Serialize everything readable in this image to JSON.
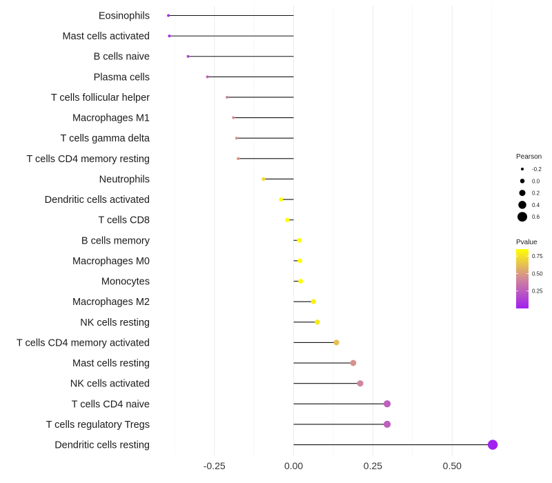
{
  "chart_data": {
    "type": "scatter",
    "subtype": "lollipop",
    "title": "",
    "xlabel": "",
    "ylabel": "",
    "xlim": [
      -0.43,
      0.68
    ],
    "x_ticks": [
      -0.25,
      0.0,
      0.25,
      0.5
    ],
    "x_tick_labels": [
      "-0.25",
      "0.00",
      "0.25",
      "0.50"
    ],
    "grid": true,
    "legend_position": "right",
    "points": [
      {
        "category": "Eosinophils",
        "value": -0.395,
        "pvalue": 0.05
      },
      {
        "category": "Mast cells activated",
        "value": -0.392,
        "pvalue": 0.06
      },
      {
        "category": "B cells naive",
        "value": -0.333,
        "pvalue": 0.15
      },
      {
        "category": "Plasma cells",
        "value": -0.272,
        "pvalue": 0.25
      },
      {
        "category": "T cells follicular helper",
        "value": -0.21,
        "pvalue": 0.4
      },
      {
        "category": "Macrophages M1",
        "value": -0.19,
        "pvalue": 0.45
      },
      {
        "category": "T cells gamma delta",
        "value": -0.18,
        "pvalue": 0.47
      },
      {
        "category": "T cells CD4 memory resting",
        "value": -0.175,
        "pvalue": 0.48
      },
      {
        "category": "Neutrophils",
        "value": -0.095,
        "pvalue": 0.72
      },
      {
        "category": "Dendritic cells activated",
        "value": -0.04,
        "pvalue": 0.86
      },
      {
        "category": "T cells CD8",
        "value": -0.02,
        "pvalue": 0.92
      },
      {
        "category": "B cells memory",
        "value": 0.018,
        "pvalue": 0.95
      },
      {
        "category": "Macrophages M0",
        "value": 0.02,
        "pvalue": 0.94
      },
      {
        "category": "Monocytes",
        "value": 0.022,
        "pvalue": 0.94
      },
      {
        "category": "Macrophages M2",
        "value": 0.063,
        "pvalue": 0.8
      },
      {
        "category": "NK cells resting",
        "value": 0.075,
        "pvalue": 0.77
      },
      {
        "category": "T cells CD4 memory activated",
        "value": 0.135,
        "pvalue": 0.62
      },
      {
        "category": "Mast cells resting",
        "value": 0.188,
        "pvalue": 0.46
      },
      {
        "category": "NK cells activated",
        "value": 0.21,
        "pvalue": 0.42
      },
      {
        "category": "T cells CD4 naive",
        "value": 0.295,
        "pvalue": 0.26
      },
      {
        "category": "T cells regulatory  Tregs",
        "value": 0.295,
        "pvalue": 0.26
      },
      {
        "category": "Dendritic cells resting",
        "value": 0.628,
        "pvalue": 0.01
      }
    ],
    "legend": {
      "size_title": "Pearson",
      "size_values": [
        -0.2,
        0.0,
        0.2,
        0.4,
        0.6
      ],
      "size_labels": [
        "-0.2",
        "0.0",
        "0.2",
        "0.4",
        "0.6"
      ],
      "color_title": "Pvalue",
      "color_ticks": [
        0.25,
        0.5,
        0.75
      ],
      "color_tick_labels": [
        "0.25",
        "0.50",
        "0.75"
      ],
      "color_range": [
        0.0,
        0.85
      ],
      "color_low": "#a020f0",
      "color_mid": "#d1879a",
      "color_high": "#ffff00"
    }
  }
}
